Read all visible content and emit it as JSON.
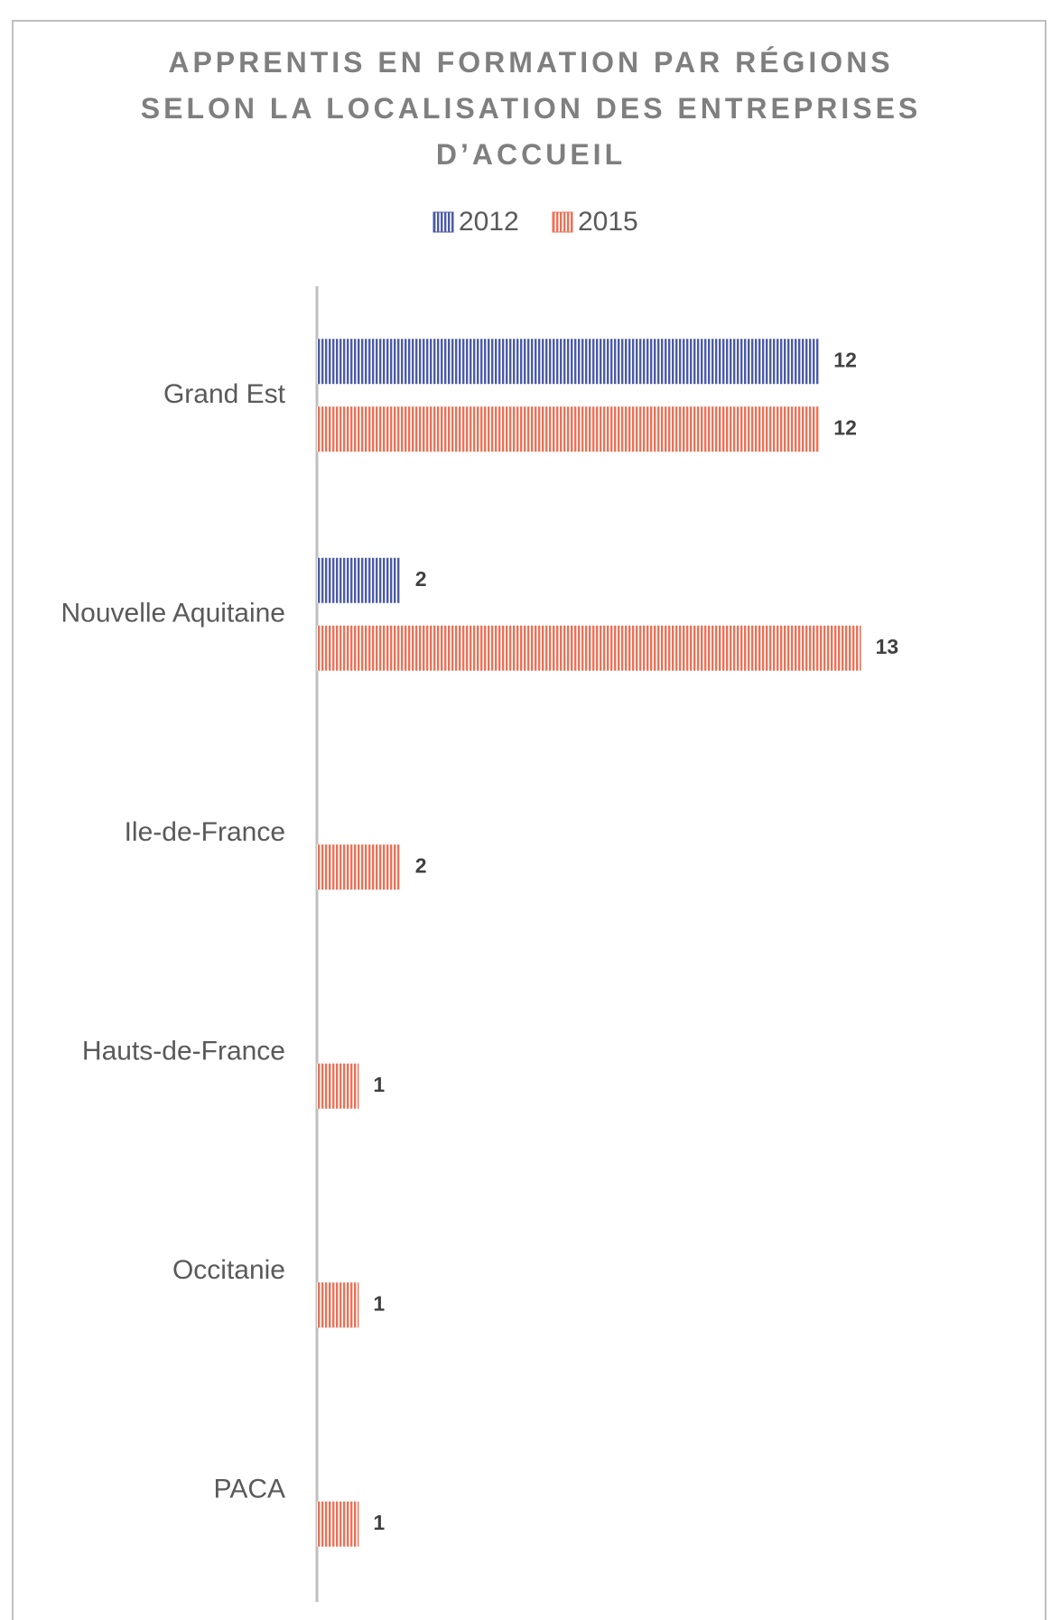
{
  "chart_data": {
    "type": "barh",
    "title": "APPRENTIS EN FORMATION PAR RÉGIONS SELON LA LOCALISATION DES ENTREPRISES D’ACCUEIL",
    "categories": [
      "Grand Est",
      "Nouvelle Aquitaine",
      "Ile-de-France",
      "Hauts-de-France",
      "Occitanie",
      "PACA"
    ],
    "series": [
      {
        "name": "2012",
        "color": "#4a5aa8",
        "values": [
          12,
          2,
          null,
          null,
          null,
          null
        ]
      },
      {
        "name": "2015",
        "color": "#ed7055",
        "values": [
          12,
          13,
          2,
          1,
          1,
          1
        ]
      }
    ],
    "xlim": [
      0,
      14
    ],
    "legend": "top",
    "grid": false
  }
}
